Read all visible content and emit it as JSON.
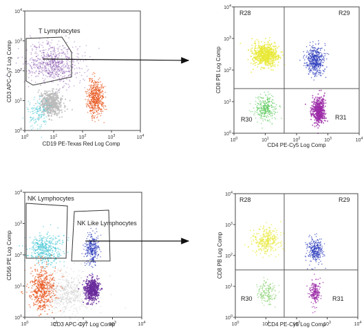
{
  "chart_data": [
    {
      "type": "scatter",
      "panel": "top-left",
      "xlabel": "CD19 PE-Texas Red Log Comp",
      "ylabel": "CD3 APC-Cy7 Log Comp",
      "xscale": "log",
      "yscale": "log",
      "xlim": [
        1,
        10000
      ],
      "ylim": [
        1,
        10000
      ],
      "x_ticks": [
        1,
        10,
        100,
        1000,
        10000
      ],
      "y_ticks": [
        1,
        10,
        100,
        1000,
        10000
      ],
      "gates": [
        {
          "label": "T Lymphocytes",
          "shape": "polygon"
        }
      ],
      "populations": [
        {
          "color": "#6a2c9c",
          "x_center": 10,
          "y_center": 170
        },
        {
          "color": "#e8561e",
          "x_center": 280,
          "y_center": 12
        },
        {
          "color": "#bcbcbc",
          "x_center": 8,
          "y_center": 8
        },
        {
          "color": "#3cc4d4",
          "x_center": 3,
          "y_center": 4
        }
      ]
    },
    {
      "type": "scatter",
      "panel": "top-right",
      "xlabel": "CD4 PE-Cy5 Log Comp",
      "ylabel": "CD8 PB Log Comp",
      "xscale": "log",
      "yscale": "log",
      "xlim": [
        1,
        10000
      ],
      "ylim": [
        1,
        10000
      ],
      "x_ticks": [
        1,
        10,
        100,
        1000,
        10000
      ],
      "y_ticks": [
        1,
        10,
        100,
        1000,
        10000
      ],
      "quadrant_threshold": {
        "x": 55,
        "y": 20
      },
      "regions": [
        "R28",
        "R29",
        "R30",
        "R31"
      ],
      "populations": [
        {
          "color": "#e8e832",
          "x_center": 10,
          "y_center": 300
        },
        {
          "color": "#2c3cbc",
          "x_center": 400,
          "y_center": 200
        },
        {
          "color": "#4cc44c",
          "x_center": 10,
          "y_center": 6
        },
        {
          "color": "#9c2ca8",
          "x_center": 500,
          "y_center": 5
        }
      ]
    },
    {
      "type": "scatter",
      "panel": "bottom-left",
      "xlabel": "CD3 APC-Cy7 Log Comp",
      "ylabel": "CD56 PE Log Comp",
      "xscale": "log",
      "yscale": "log",
      "xlim": [
        1,
        10000
      ],
      "ylim": [
        1,
        10000
      ],
      "x_ticks": [
        1,
        10,
        100,
        1000,
        10000
      ],
      "y_ticks": [
        1,
        10,
        100,
        1000,
        10000
      ],
      "gates": [
        {
          "label": "NK Lymphocytes",
          "shape": "polygon"
        },
        {
          "label": "NK Like Lymphocytes",
          "shape": "polygon"
        }
      ],
      "populations": [
        {
          "color": "#3cc4d4",
          "x_center": 5,
          "y_center": 150
        },
        {
          "color": "#2c3cbc",
          "x_center": 200,
          "y_center": 150
        },
        {
          "color": "#e8561e",
          "x_center": 4,
          "y_center": 8
        },
        {
          "color": "#6a2c9c",
          "x_center": 200,
          "y_center": 8
        },
        {
          "color": "#bcbcbc",
          "x_center": 30,
          "y_center": 6
        }
      ]
    },
    {
      "type": "scatter",
      "panel": "bottom-right",
      "xlabel": "CD4 PE-Cy5 Log Comp",
      "ylabel": "CD8 PB Log Comp",
      "xscale": "log",
      "yscale": "log",
      "xlim": [
        1,
        10000
      ],
      "ylim": [
        1,
        10000
      ],
      "x_ticks": [
        1,
        10,
        100,
        1000,
        10000
      ],
      "y_ticks": [
        1,
        10,
        100,
        1000,
        10000
      ],
      "quadrant_threshold": {
        "x": 55,
        "y": 22
      },
      "regions": [
        "R28",
        "R29",
        "R30",
        "R31"
      ],
      "populations": [
        {
          "color": "#e8e832",
          "x_center": 10,
          "y_center": 300
        },
        {
          "color": "#2c3cbc",
          "x_center": 400,
          "y_center": 150
        },
        {
          "color": "#6cc44c",
          "x_center": 10,
          "y_center": 6
        },
        {
          "color": "#9c2ca8",
          "x_center": 400,
          "y_center": 6
        }
      ]
    }
  ]
}
